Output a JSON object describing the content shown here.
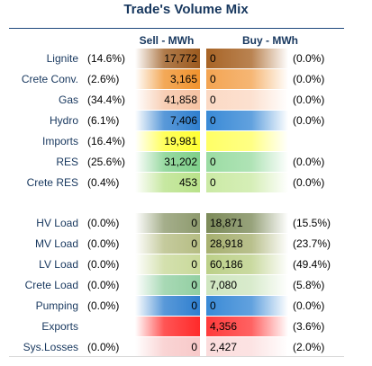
{
  "chart_data": {
    "type": "table",
    "title": "Trade's Volume Mix",
    "columns": [
      "Sell - MWh",
      "Buy - MWh"
    ],
    "rows": [
      {
        "label": "Lignite",
        "sell_pct": "(14.6%)",
        "sell": "17,772",
        "buy": "0",
        "buy_pct": "(0.0%)",
        "sell_color": "#9c5a1e",
        "buy_color": "#a86426"
      },
      {
        "label": "Crete Conv.",
        "sell_pct": "(2.6%)",
        "sell": "3,165",
        "buy": "0",
        "buy_pct": "(0.0%)",
        "sell_color": "#f0932e",
        "buy_color": "#f3a452"
      },
      {
        "label": "Gas",
        "sell_pct": "(34.4%)",
        "sell": "41,858",
        "buy": "0",
        "buy_pct": "(0.0%)",
        "sell_color": "#f6c3a3",
        "buy_color": "#fbd9c4"
      },
      {
        "label": "Hydro",
        "sell_pct": "(6.1%)",
        "sell": "7,406",
        "buy": "0",
        "buy_pct": "(0.0%)",
        "sell_color": "#2f7fcf",
        "buy_color": "#3a8ad6"
      },
      {
        "label": "Imports",
        "sell_pct": "(16.4%)",
        "sell": "19,981",
        "buy": "",
        "buy_pct": "",
        "sell_color": "#ffff33",
        "buy_color": "#ffff66"
      },
      {
        "label": "RES",
        "sell_pct": "(25.6%)",
        "sell": "31,202",
        "buy": "0",
        "buy_pct": "(0.0%)",
        "sell_color": "#7fd08a",
        "buy_color": "#9bdca3"
      },
      {
        "label": "Crete RES",
        "sell_pct": "(0.4%)",
        "sell": "453",
        "buy": "0",
        "buy_pct": "(0.0%)",
        "sell_color": "#b9e28a",
        "buy_color": "#cbeaa5"
      },
      {
        "label": "HV Load",
        "sell_pct": "(0.0%)",
        "sell": "0",
        "buy": "18,871",
        "buy_pct": "(15.5%)",
        "sell_color": "#8e9a6e",
        "buy_color": "#7d8b5a"
      },
      {
        "label": "MV Load",
        "sell_pct": "(0.0%)",
        "sell": "0",
        "buy": "28,918",
        "buy_pct": "(23.7%)",
        "sell_color": "#b6bd84",
        "buy_color": "#a7b070"
      },
      {
        "label": "LV Load",
        "sell_pct": "(0.0%)",
        "sell": "0",
        "buy": "60,186",
        "buy_pct": "(49.4%)",
        "sell_color": "#c9d99a",
        "buy_color": "#bcd088"
      },
      {
        "label": "Crete Load",
        "sell_pct": "(0.0%)",
        "sell": "0",
        "buy": "7,080",
        "buy_pct": "(5.8%)",
        "sell_color": "#92cfa2",
        "buy_color": "#cfe6c0"
      },
      {
        "label": "Pumping",
        "sell_pct": "(0.0%)",
        "sell": "0",
        "buy": "0",
        "buy_pct": "(0.0%)",
        "sell_color": "#2f7fcf",
        "buy_color": "#3a8ad6"
      },
      {
        "label": "Exports",
        "sell_pct": "",
        "sell": "",
        "buy": "4,356",
        "buy_pct": "(3.6%)",
        "sell_color": "#ff2a2a",
        "buy_color": "#ff3b3b"
      },
      {
        "label": "Sys.Losses",
        "sell_pct": "(0.0%)",
        "sell": "0",
        "buy": "2,427",
        "buy_pct": "(2.0%)",
        "sell_color": "#f8c9c9",
        "buy_color": "#fbdcdc"
      }
    ]
  }
}
